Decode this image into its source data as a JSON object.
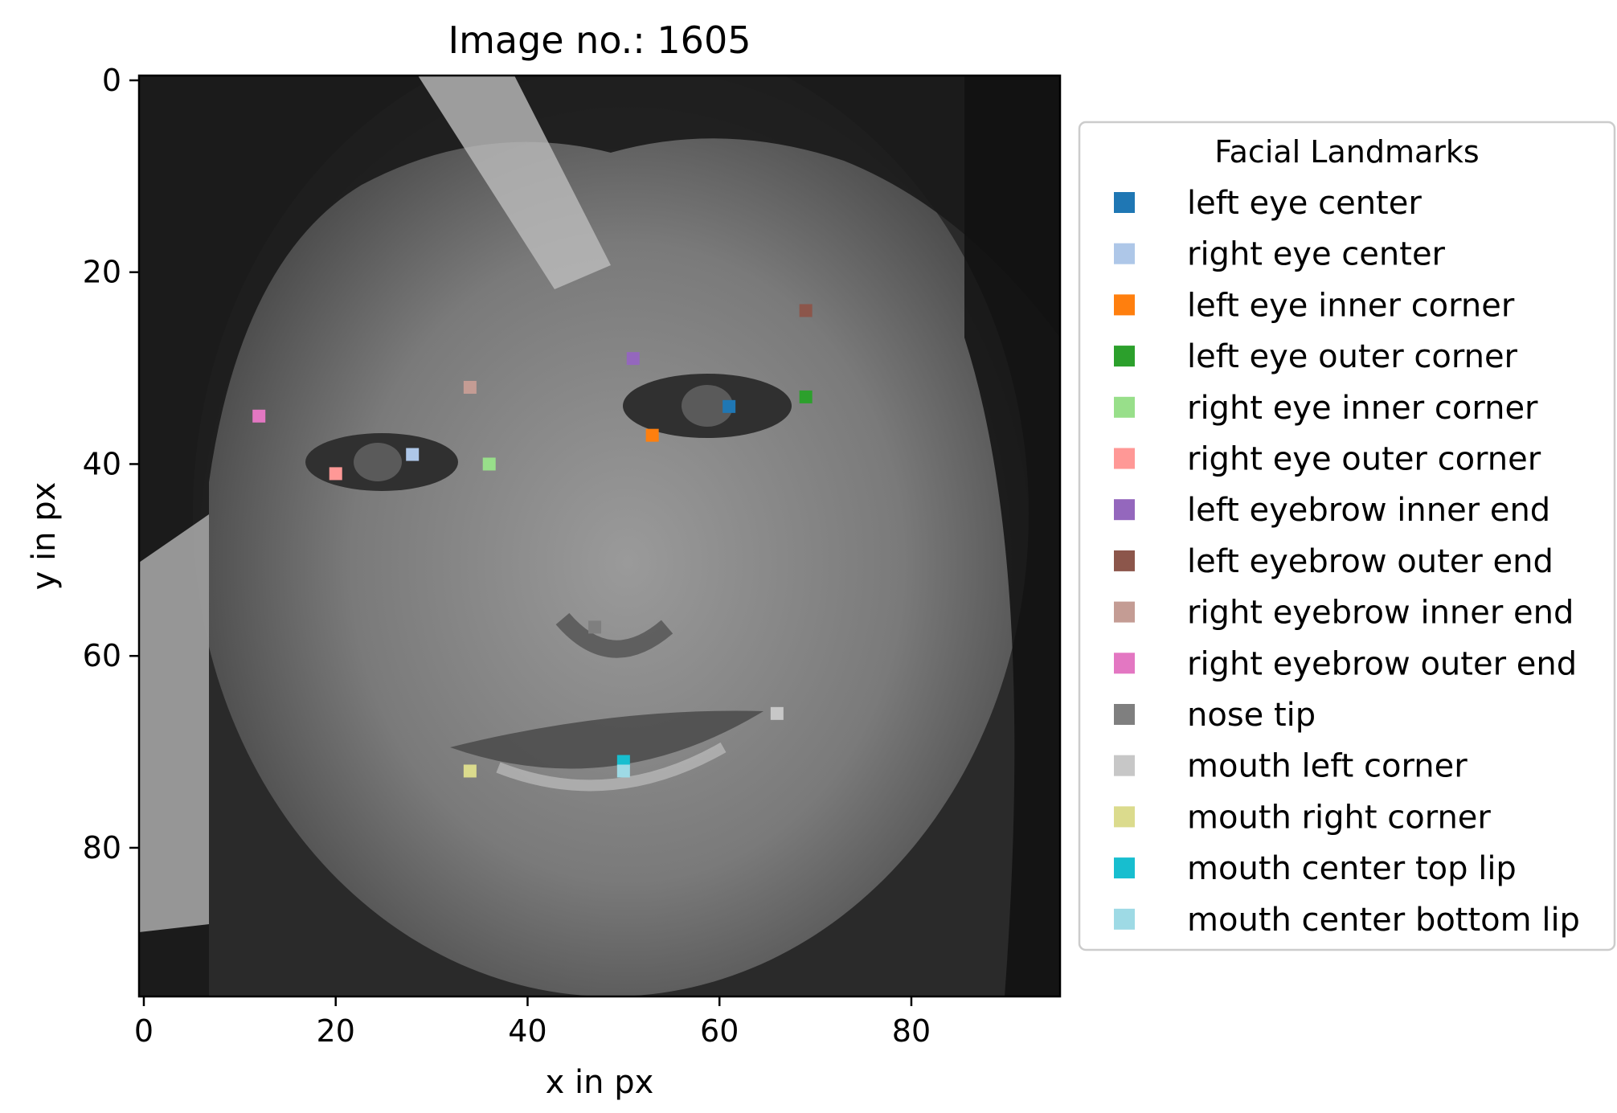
{
  "title": "Image no.: 1605",
  "chart_data": {
    "type": "scatter",
    "title": "Image no.: 1605",
    "xlabel": "x in px",
    "ylabel": "y in px",
    "xlim": [
      -0.5,
      95.5
    ],
    "ylim": [
      95.5,
      -0.5
    ],
    "y_inverted": true,
    "xticks": [
      0,
      20,
      40,
      60,
      80
    ],
    "yticks": [
      0,
      20,
      40,
      60,
      80
    ],
    "grid": false,
    "background": "grayscale face photograph (96x96 px)",
    "legend": {
      "title": "Facial Landmarks",
      "placement": "outside-right"
    },
    "series": [
      {
        "name": "left eye center",
        "color": "#1f77b4",
        "x": 61,
        "y": 34
      },
      {
        "name": "right eye center",
        "color": "#aec7e8",
        "x": 28,
        "y": 39
      },
      {
        "name": "left eye inner corner",
        "color": "#ff7f0e",
        "x": 53,
        "y": 37
      },
      {
        "name": "left eye outer corner",
        "color": "#2ca02c",
        "x": 69,
        "y": 33
      },
      {
        "name": "right eye inner corner",
        "color": "#98df8a",
        "x": 36,
        "y": 40
      },
      {
        "name": "right eye outer corner",
        "color": "#ff9896",
        "x": 20,
        "y": 41
      },
      {
        "name": "left eyebrow inner end",
        "color": "#9467bd",
        "x": 51,
        "y": 29
      },
      {
        "name": "left eyebrow outer end",
        "color": "#8c564b",
        "x": 69,
        "y": 24
      },
      {
        "name": "right eyebrow inner end",
        "color": "#c49c94",
        "x": 34,
        "y": 32
      },
      {
        "name": "right eyebrow outer end",
        "color": "#e377c2",
        "x": 12,
        "y": 35
      },
      {
        "name": "nose tip",
        "color": "#7f7f7f",
        "x": 47,
        "y": 57
      },
      {
        "name": "mouth left corner",
        "color": "#c7c7c7",
        "x": 66,
        "y": 66
      },
      {
        "name": "mouth right corner",
        "color": "#dbdb8d",
        "x": 34,
        "y": 72
      },
      {
        "name": "mouth center top lip",
        "color": "#17becf",
        "x": 50,
        "y": 71
      },
      {
        "name": "mouth center bottom lip",
        "color": "#9edae5",
        "x": 50,
        "y": 72
      }
    ]
  }
}
